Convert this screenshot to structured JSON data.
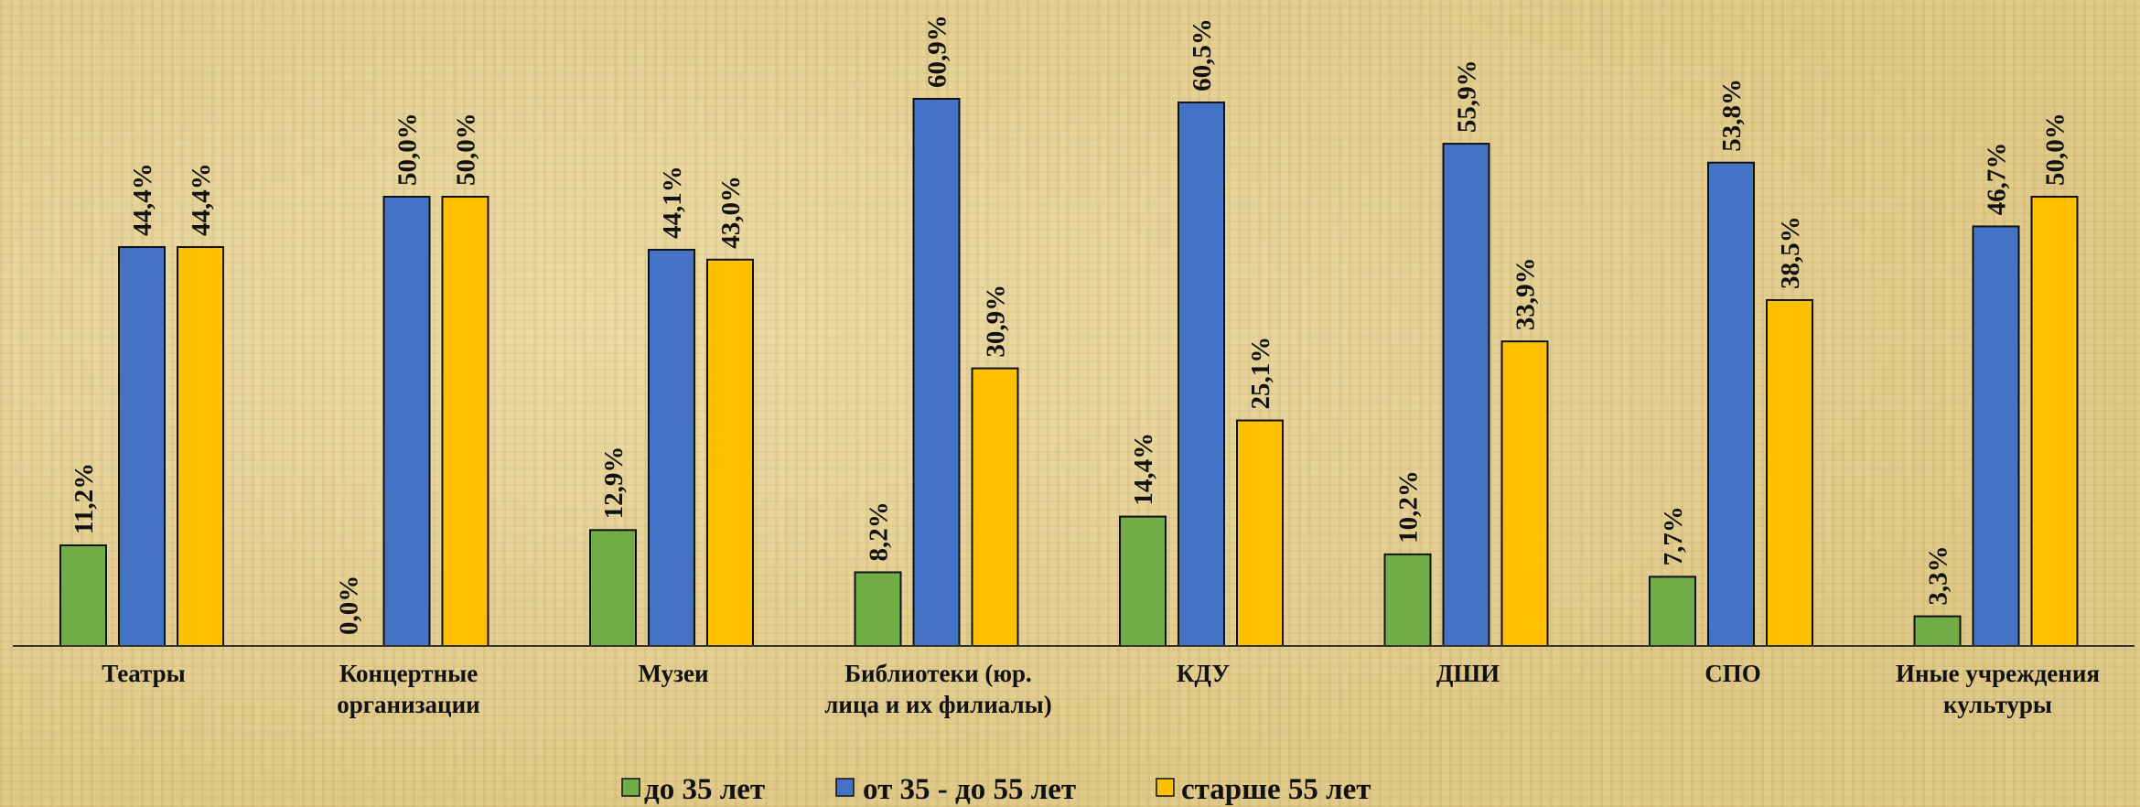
{
  "chart_data": {
    "type": "bar",
    "categories": [
      [
        "Театры"
      ],
      [
        "Концертные",
        "организации"
      ],
      [
        "Музеи"
      ],
      [
        "Библиотеки (юр.",
        "лица и их филиалы)"
      ],
      [
        "КДУ"
      ],
      [
        "ДШИ"
      ],
      [
        "СПО"
      ],
      [
        "Иные учреждения",
        "культуры"
      ]
    ],
    "series": [
      {
        "name": "до 35 лет",
        "color": "#70ad47",
        "values": [
          11.2,
          0.0,
          12.9,
          8.2,
          14.4,
          10.2,
          7.7,
          3.3
        ],
        "labels": [
          "11,2%",
          "0,0%",
          "12,9%",
          "8,2%",
          "14,4%",
          "10,2%",
          "7,7%",
          "3,3%"
        ]
      },
      {
        "name": "от 35 - до 55 лет",
        "color": "#4472c4",
        "values": [
          44.4,
          50.0,
          44.1,
          60.9,
          60.5,
          55.9,
          53.8,
          46.7
        ],
        "labels": [
          "44,4%",
          "50,0%",
          "44,1%",
          "60,9%",
          "60,5%",
          "55,9%",
          "53,8%",
          "46,7%"
        ]
      },
      {
        "name": "старше 55 лет",
        "color": "#ffc000",
        "values": [
          44.4,
          50.0,
          43.0,
          30.9,
          25.1,
          33.9,
          38.5,
          50.0
        ],
        "labels": [
          "44,4%",
          "50,0%",
          "43,0%",
          "30,9%",
          "25,1%",
          "33,9%",
          "38,5%",
          "50,0%"
        ]
      }
    ],
    "ylim": [
      0,
      70
    ],
    "grid": false,
    "legend_position": "bottom",
    "title": "",
    "xlabel": "",
    "ylabel": ""
  }
}
